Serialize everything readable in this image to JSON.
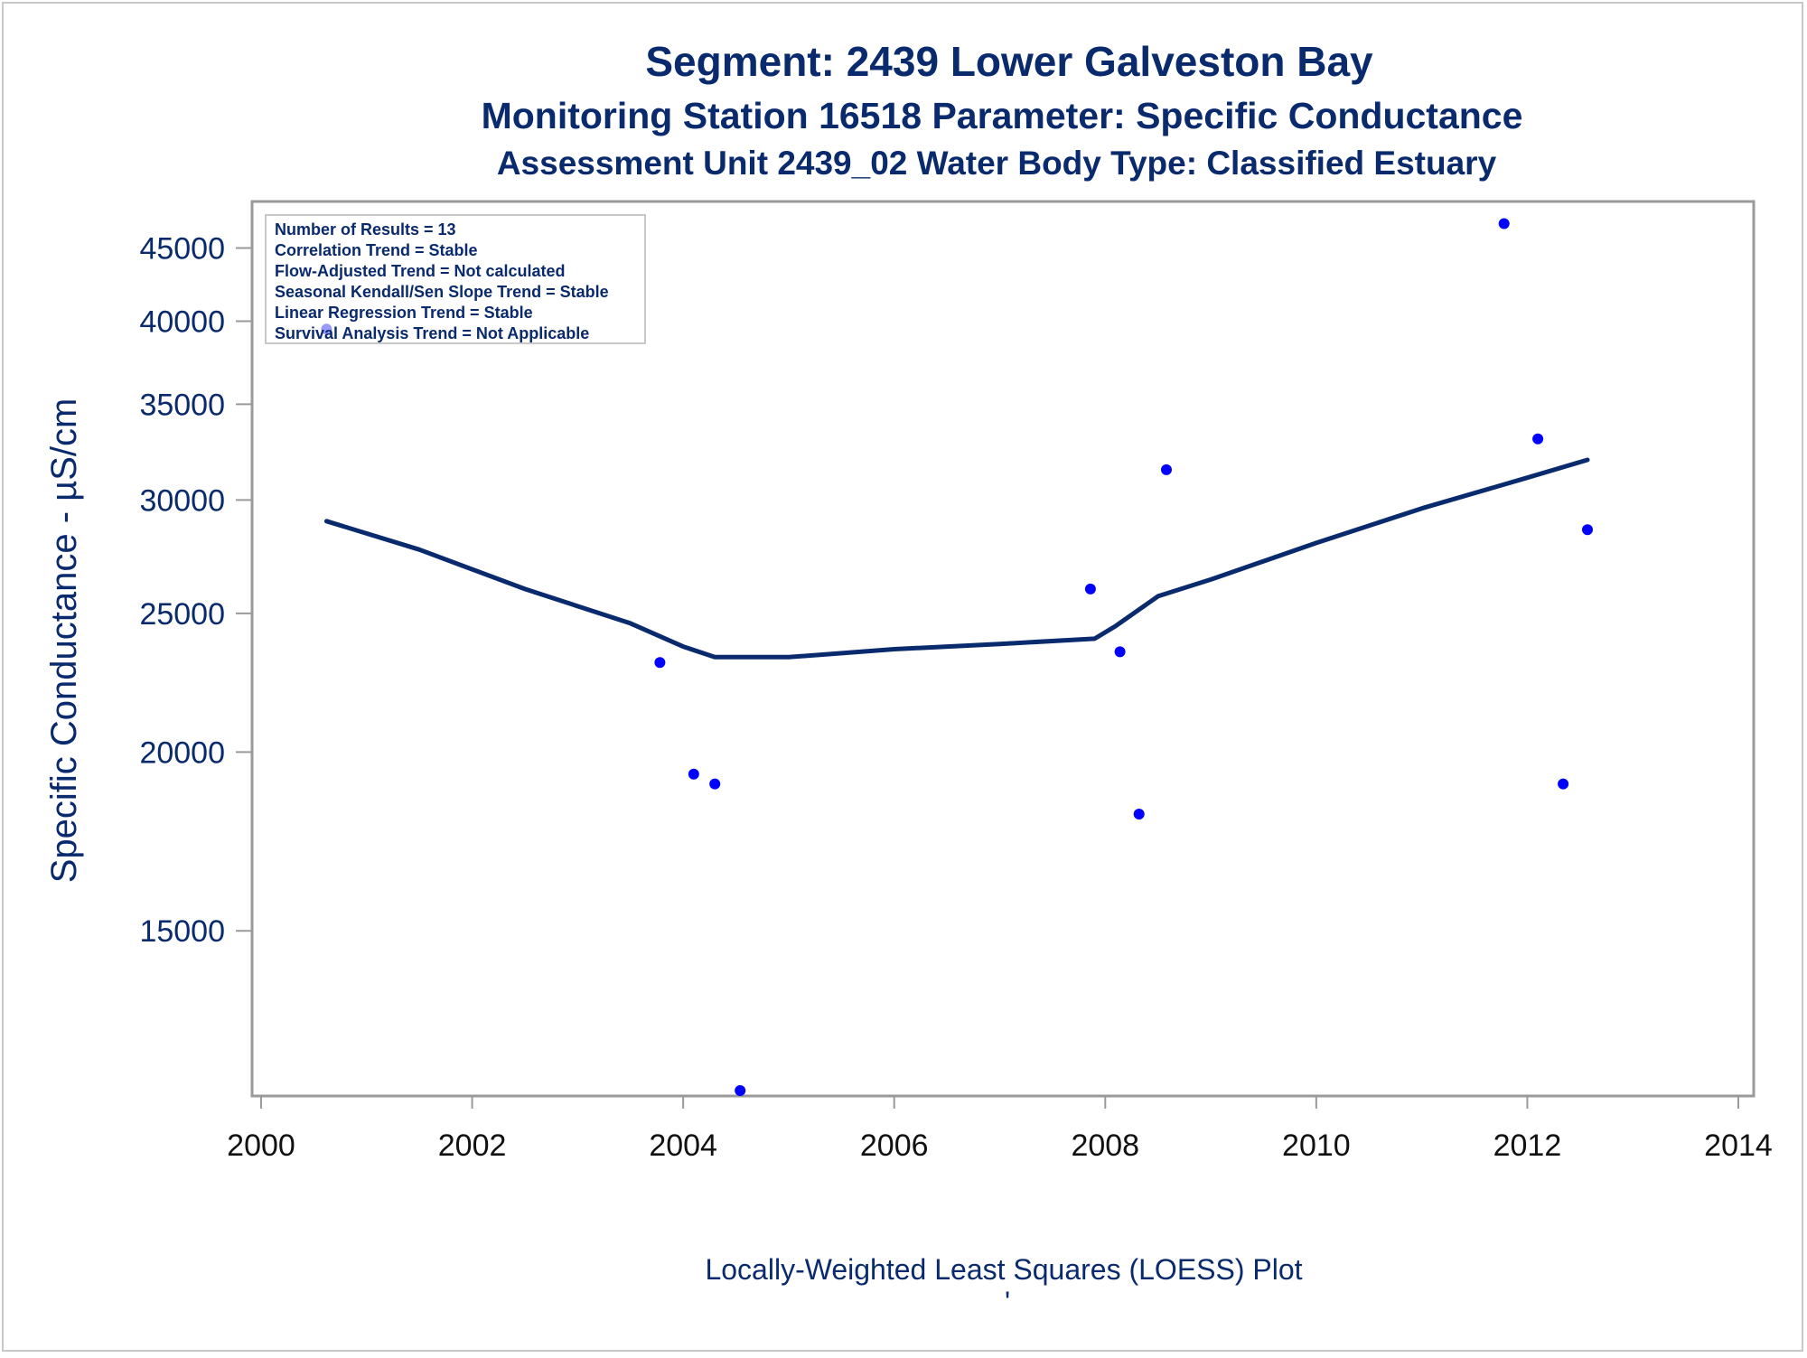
{
  "chart_data": {
    "type": "scatter",
    "title": "Segment: 2439  Lower Galveston Bay",
    "subtitle": "Monitoring Station 16518 Parameter: Specific Conductance",
    "subtitle2": "Assessment Unit 2439_02   Water Body Type: Classified Estuary",
    "ylabel": "Specific Conductance -  µS/cm",
    "footnote": "Locally-Weighted Least Squares (LOESS) Plot",
    "footnote_mark": "'",
    "xlim": [
      2000,
      2014
    ],
    "x_ticks": [
      2000,
      2002,
      2004,
      2006,
      2008,
      2010,
      2012,
      2014
    ],
    "y_ticks": [
      15000,
      20000,
      25000,
      30000,
      35000,
      40000,
      45000
    ],
    "ylim": [
      11500,
      48500
    ],
    "y_scale": "log",
    "grid": false,
    "legend_position": "top-left",
    "stats": [
      "Number of Results = 13",
      "Correlation Trend = Stable",
      "Flow-Adjusted Trend = Not calculated",
      "Seasonal Kendall/Sen Slope Trend = Stable",
      "Linear Regression Trend = Stable",
      "Survival Analysis Trend = Not Applicable"
    ],
    "series": [
      {
        "kind": "points",
        "color": "#0000ff",
        "x": [
          2000.62,
          2003.78,
          2004.1,
          2004.3,
          2004.54,
          2007.86,
          2008.14,
          2008.32,
          2008.58,
          2011.78,
          2012.1,
          2012.34,
          2012.57
        ],
        "y": [
          39500,
          23100,
          19300,
          19000,
          11600,
          26000,
          23500,
          18100,
          31500,
          46800,
          33100,
          19000,
          28600
        ]
      },
      {
        "kind": "loess",
        "color": "#0a2a6e",
        "x": [
          2000.62,
          2001.5,
          2002.5,
          2003.5,
          2004.0,
          2004.3,
          2005.0,
          2006.0,
          2007.0,
          2007.9,
          2008.1,
          2008.5,
          2009.0,
          2010.0,
          2011.0,
          2012.0,
          2012.57
        ],
        "y": [
          29000,
          27700,
          26000,
          24600,
          23700,
          23300,
          23300,
          23600,
          23800,
          24000,
          24500,
          25700,
          26400,
          28000,
          29600,
          31100,
          32000
        ]
      }
    ]
  }
}
